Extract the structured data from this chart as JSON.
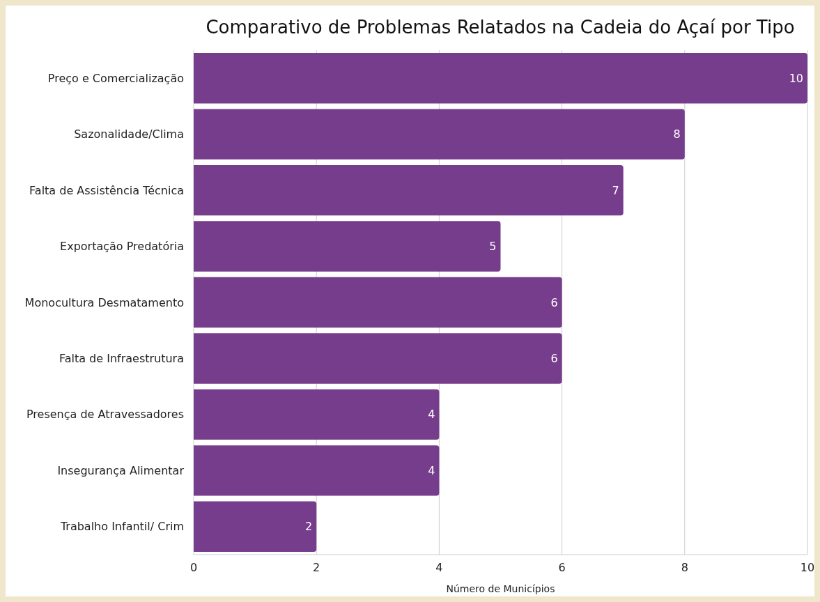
{
  "chart_data": {
    "type": "bar",
    "orientation": "horizontal",
    "title": "Comparativo de Problemas Relatados na Cadeia do Açaí por Tipo",
    "xlabel": "Número de Municípios",
    "categories": [
      "Preço e Comercialização",
      "Sazonalidade/Clima",
      "Falta de Assistência Técnica",
      "Exportação Predatória",
      "Monocultura Desmatamento",
      "Falta de Infraestrutura",
      "Presença de Atravessadores",
      "Insegurança Alimentar",
      "Trabalho Infantil/ Crim"
    ],
    "values": [
      10,
      8,
      7,
      5,
      6,
      6,
      4,
      4,
      2
    ],
    "color": "#773d8d",
    "xlim": [
      0,
      10
    ],
    "xticks": [
      0,
      2,
      4,
      6,
      8,
      10
    ],
    "grid": "x",
    "data_labels": true
  }
}
